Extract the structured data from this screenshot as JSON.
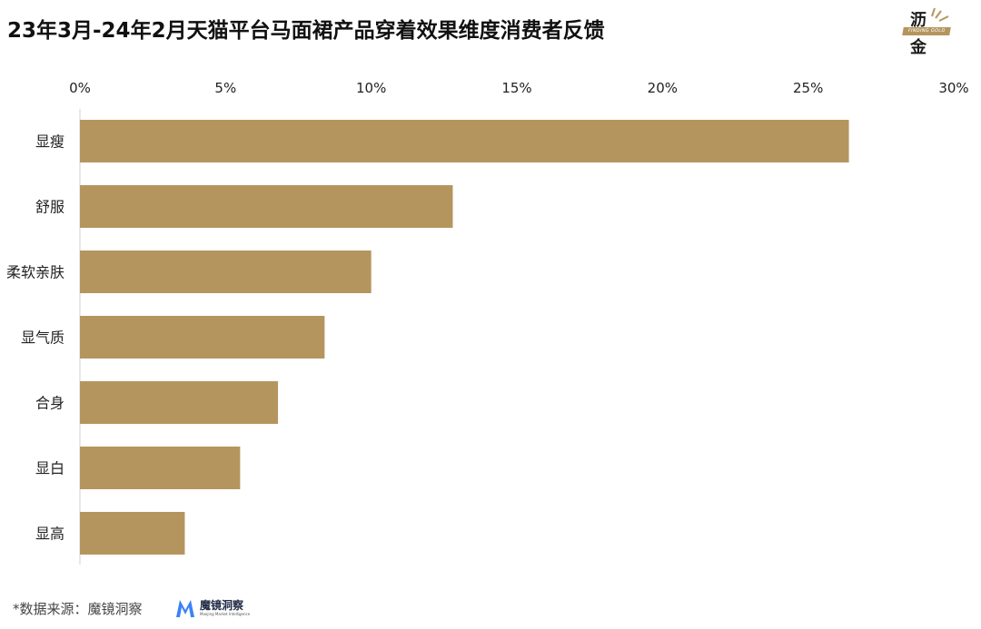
{
  "header": {
    "title": "23年3月-24年2月天猫平台马面裙产品穿着效果维度消费者反馈"
  },
  "logo": {
    "top_char": "沥",
    "bottom_char": "金",
    "band_text": "FINDING GOLD",
    "color": "#b5955e"
  },
  "chart_data": {
    "type": "bar",
    "orientation": "horizontal",
    "categories": [
      "显瘦",
      "舒服",
      "柔软亲肤",
      "显气质",
      "合身",
      "显白",
      "显高"
    ],
    "values": [
      26.4,
      12.8,
      10.0,
      8.4,
      6.8,
      5.5,
      3.6
    ],
    "xlim": [
      0,
      30
    ],
    "x_ticks": [
      "0%",
      "5%",
      "10%",
      "15%",
      "20%",
      "25%",
      "30%"
    ],
    "x_tick_values": [
      0,
      5,
      10,
      15,
      20,
      25,
      30
    ],
    "axis_position": "top",
    "grid": false,
    "bar_color": "#b5955e"
  },
  "footer": {
    "source": "*数据来源：魔镜洞察",
    "brand_name": "魔镜洞察",
    "brand_sub": "Moojing Market Intelligence"
  }
}
